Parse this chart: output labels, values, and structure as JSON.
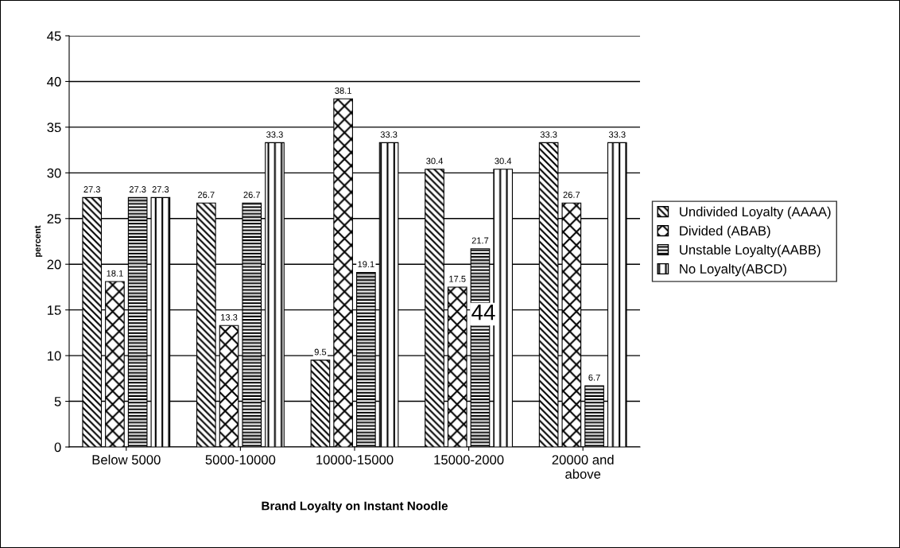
{
  "chart_data": {
    "type": "bar",
    "xlabel": "Brand Loyalty on Instant Noodle",
    "ylabel": "percent",
    "categories": [
      "Below 5000",
      "5000-10000",
      "10000-15000",
      "15000-2000",
      "20000 and\nabove"
    ],
    "series": [
      {
        "name": "Undivided Loyalty (AAAA)",
        "color": "#000000",
        "values": [
          27.3,
          26.7,
          9.5,
          30.4,
          33.3
        ]
      },
      {
        "name": "Divided (ABAB)",
        "color": "#000000",
        "values": [
          18.1,
          13.3,
          38.1,
          17.5,
          26.7
        ]
      },
      {
        "name": "Unstable Loyalty(AABB)",
        "color": "#000000",
        "values": [
          27.3,
          26.7,
          19.1,
          21.7,
          6.7
        ]
      },
      {
        "name": "No Loyalty(ABCD)",
        "color": "#000000",
        "values": [
          27.3,
          33.3,
          33.3,
          30.4,
          33.3
        ]
      }
    ],
    "ylim": [
      0,
      45
    ],
    "yticks": [
      0,
      5,
      10,
      15,
      20,
      25,
      30,
      35,
      40,
      45
    ],
    "grid": "y",
    "legend": "right",
    "data_labels": true,
    "annotations": [
      "44"
    ]
  }
}
